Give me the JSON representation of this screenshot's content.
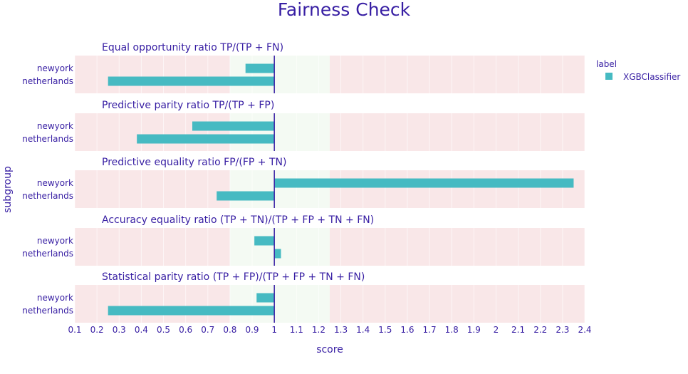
{
  "title": "Fairness Check",
  "legend": {
    "title": "label",
    "items": [
      {
        "name": "XGBClassifier",
        "color": "#46bac2"
      }
    ]
  },
  "colors": {
    "bar": "#46bac2",
    "red_zone": "#f9e7e8",
    "green_zone": "#f4faf3",
    "reference_line": "#371ea3",
    "text": "#371ea3"
  },
  "chart_data": {
    "type": "bar",
    "orientation": "horizontal",
    "xlabel": "score",
    "ylabel": "subgroup",
    "xlim": [
      0.1,
      2.4
    ],
    "x_ticks": [
      0.1,
      0.2,
      0.3,
      0.4,
      0.5,
      0.6,
      0.7,
      0.8,
      0.9,
      1,
      1.1,
      1.2,
      1.3,
      1.4,
      1.5,
      1.6,
      1.7,
      1.8,
      1.9,
      2,
      2.1,
      2.2,
      2.3,
      2.4
    ],
    "reference_value": 1,
    "acceptable_range": [
      0.8,
      1.25
    ],
    "series_name": "XGBClassifier",
    "categories": [
      "newyork",
      "netherlands"
    ],
    "panels": [
      {
        "metric": "Equal opportunity ratio",
        "formula": "TP/(TP + FN)",
        "values": [
          0.87,
          0.25
        ]
      },
      {
        "metric": "Predictive parity ratio",
        "formula": "TP/(TP + FP)",
        "values": [
          0.63,
          0.38
        ]
      },
      {
        "metric": "Predictive equality ratio",
        "formula": "FP/(FP + TN)",
        "values": [
          2.35,
          0.74
        ]
      },
      {
        "metric": "Accuracy equality ratio",
        "formula": "(TP + TN)/(TP + FP + TN + FN)",
        "values": [
          0.91,
          1.03
        ]
      },
      {
        "metric": "Statistical parity ratio",
        "formula": "(TP + FP)/(TP + FP + TN + FN)",
        "values": [
          0.92,
          0.25
        ]
      }
    ]
  }
}
